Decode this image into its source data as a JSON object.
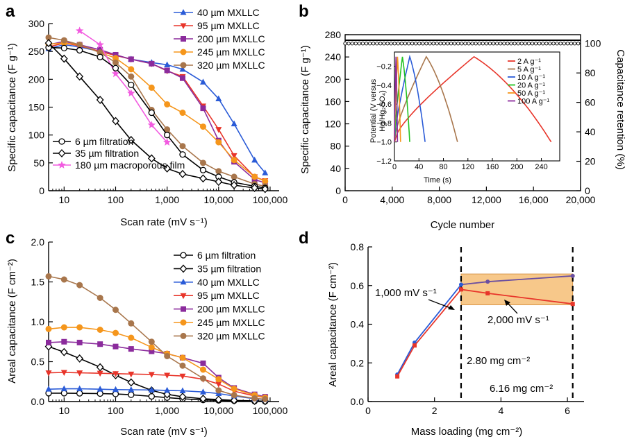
{
  "chart_data": [
    {
      "panel": "a",
      "type": "line",
      "xscale": "log",
      "xlim": [
        5,
        150000
      ],
      "ylim": [
        0,
        300
      ],
      "xlabel": "Scan rate (mV s⁻¹)",
      "ylabel": "Specific capacitance (F g⁻¹)",
      "xticks": [
        {
          "v": 10,
          "t": "10"
        },
        {
          "v": 100,
          "t": "100"
        },
        {
          "v": 1000,
          "t": "1,000"
        },
        {
          "v": 10000,
          "t": "10,000"
        },
        {
          "v": 100000,
          "t": "100,000"
        }
      ],
      "yticks": [
        {
          "v": 0,
          "t": "0"
        },
        {
          "v": 50,
          "t": "50"
        },
        {
          "v": 100,
          "t": "100"
        },
        {
          "v": 150,
          "t": "150"
        },
        {
          "v": 200,
          "t": "200"
        },
        {
          "v": 250,
          "t": "250"
        },
        {
          "v": 300,
          "t": "300"
        }
      ],
      "legend_top": [
        "40 µm MXLLC",
        "95 µm MXLLC",
        "200 µm MXLLC",
        "245 µm MXLLC",
        "320 µm MXLLC"
      ],
      "legend_bottom": [
        "6 µm filtration",
        "35 µm filtration",
        "180 µm macroporous film"
      ],
      "series": [
        {
          "name": "40 µm MXLLC",
          "color": "#2a5bd7",
          "marker": "tri",
          "x": [
            5,
            10,
            20,
            50,
            100,
            200,
            500,
            1000,
            2000,
            5000,
            10000,
            20000,
            50000,
            80000
          ],
          "y": [
            255,
            262,
            258,
            250,
            243,
            236,
            230,
            226,
            218,
            195,
            165,
            120,
            55,
            32
          ]
        },
        {
          "name": "95 µm MXLLC",
          "color": "#e8352a",
          "marker": "tridown",
          "x": [
            5,
            10,
            20,
            50,
            100,
            200,
            500,
            1000,
            2000,
            5000,
            10000,
            20000,
            50000,
            80000
          ],
          "y": [
            258,
            265,
            260,
            250,
            243,
            236,
            228,
            215,
            205,
            152,
            110,
            63,
            25,
            18
          ]
        },
        {
          "name": "200 µm MXLLC",
          "color": "#8b2b9c",
          "marker": "square",
          "x": [
            5,
            10,
            20,
            50,
            100,
            200,
            500,
            1000,
            2000,
            5000,
            10000,
            20000,
            50000,
            80000
          ],
          "y": [
            262,
            268,
            262,
            253,
            244,
            236,
            228,
            216,
            202,
            148,
            90,
            52,
            20,
            14
          ]
        },
        {
          "name": "245 µm MXLLC",
          "color": "#f5961c",
          "marker": "circle",
          "x": [
            5,
            10,
            20,
            50,
            100,
            200,
            500,
            1000,
            2000,
            5000,
            10000,
            20000,
            50000,
            80000
          ],
          "y": [
            263,
            265,
            262,
            248,
            238,
            218,
            185,
            155,
            140,
            115,
            87,
            55,
            25,
            17
          ]
        },
        {
          "name": "320 µm MXLLC",
          "color": "#a8764c",
          "marker": "circle",
          "x": [
            5,
            10,
            20,
            50,
            100,
            200,
            500,
            1000,
            2000,
            5000,
            10000,
            20000,
            50000,
            80000
          ],
          "y": [
            275,
            270,
            262,
            248,
            230,
            205,
            145,
            110,
            80,
            50,
            35,
            25,
            12,
            8
          ]
        },
        {
          "name": "180 µm macroporous film",
          "color": "#f25be0",
          "marker": "star",
          "x": [
            20,
            50,
            100,
            200,
            500,
            1000
          ],
          "y": [
            287,
            262,
            210,
            175,
            118,
            87
          ]
        },
        {
          "name": "6 µm filtration",
          "color": "#000000",
          "marker": "opencircle",
          "x": [
            5,
            10,
            20,
            50,
            100,
            200,
            500,
            1000,
            2000,
            5000,
            10000,
            20000,
            50000,
            80000
          ],
          "y": [
            257,
            256,
            252,
            240,
            220,
            190,
            140,
            100,
            65,
            37,
            25,
            15,
            8,
            5
          ]
        },
        {
          "name": "35 µm filtration",
          "color": "#000000",
          "marker": "opendiamond",
          "x": [
            5,
            10,
            20,
            50,
            100,
            200,
            500,
            1000,
            2000,
            5000,
            10000,
            20000,
            50000,
            80000
          ],
          "y": [
            265,
            237,
            205,
            163,
            125,
            91,
            58,
            40,
            30,
            22,
            16,
            10,
            5,
            3
          ]
        }
      ]
    },
    {
      "panel": "b",
      "type": "scatter",
      "xlim": [
        0,
        20000
      ],
      "ylim": [
        0,
        280
      ],
      "y2lim": [
        0,
        110
      ],
      "xlabel": "Cycle number",
      "ylabel": "Specific capacitance (F g⁻¹)",
      "y2label": "Capacitance retention (%)",
      "xticks": [
        {
          "v": 0,
          "t": "0"
        },
        {
          "v": 4000,
          "t": "4,000"
        },
        {
          "v": 8000,
          "t": "8,000"
        },
        {
          "v": 12000,
          "t": "12,000"
        },
        {
          "v": 16000,
          "t": "16,000"
        },
        {
          "v": 20000,
          "t": "20,000"
        }
      ],
      "yticks": [
        {
          "v": 0,
          "t": "0"
        },
        {
          "v": 40,
          "t": "40"
        },
        {
          "v": 80,
          "t": "80"
        },
        {
          "v": 120,
          "t": "120"
        },
        {
          "v": 160,
          "t": "160"
        },
        {
          "v": 200,
          "t": "200"
        },
        {
          "v": 240,
          "t": "240"
        },
        {
          "v": 280,
          "t": "280"
        }
      ],
      "y2ticks": [
        {
          "v": 0,
          "t": "0"
        },
        {
          "v": 20,
          "t": "20"
        },
        {
          "v": 40,
          "t": "40"
        },
        {
          "v": 60,
          "t": "60"
        },
        {
          "v": 80,
          "t": "80"
        },
        {
          "v": 100,
          "t": "100"
        }
      ],
      "capacitance_level": 270,
      "retention_level": 100,
      "inset": {
        "xlabel": "Time (s)",
        "ylabel_1": "Potential (V versus",
        "ylabel_2": "Hg/Hg₂SO₄)",
        "xlim": [
          0,
          270
        ],
        "ylim": [
          -1.2,
          0
        ],
        "xticks": [
          {
            "v": 0,
            "t": "0"
          },
          {
            "v": 40,
            "t": "40"
          },
          {
            "v": 80,
            "t": "80"
          },
          {
            "v": 120,
            "t": "120"
          },
          {
            "v": 160,
            "t": "160"
          },
          {
            "v": 200,
            "t": "200"
          },
          {
            "v": 240,
            "t": "240"
          }
        ],
        "yticks": [
          {
            "v": -1.2,
            "t": "−1.2"
          },
          {
            "v": -1.0,
            "t": "−1.0"
          },
          {
            "v": -0.8,
            "t": "−0.8"
          },
          {
            "v": -0.6,
            "t": "−0.6"
          },
          {
            "v": -0.4,
            "t": "−0.4"
          },
          {
            "v": -0.2,
            "t": "−0.2"
          }
        ],
        "series": [
          {
            "name": "2 A g⁻¹",
            "color": "#e8352a",
            "charge_end": 130,
            "discharge_end": 256
          },
          {
            "name": "5 A g⁻¹",
            "color": "#a8764c",
            "charge_end": 52,
            "discharge_end": 103
          },
          {
            "name": "10 A g⁻¹",
            "color": "#2a5bd7",
            "charge_end": 25,
            "discharge_end": 50
          },
          {
            "name": "20 A g⁻¹",
            "color": "#22c322",
            "charge_end": 13,
            "discharge_end": 25
          },
          {
            "name": "50 A g⁻¹",
            "color": "#f5961c",
            "charge_end": 5,
            "discharge_end": 10
          },
          {
            "name": "100 A g⁻¹",
            "color": "#8b2b9c",
            "charge_end": 2.5,
            "discharge_end": 5
          }
        ]
      }
    },
    {
      "panel": "c",
      "type": "line",
      "xscale": "log",
      "xlim": [
        5,
        150000
      ],
      "ylim": [
        0,
        2.0
      ],
      "xlabel": "Scan rate (mV s⁻¹)",
      "ylabel": "Areal capacitance (F cm⁻²)",
      "xticks": [
        {
          "v": 10,
          "t": "10"
        },
        {
          "v": 100,
          "t": "100"
        },
        {
          "v": 1000,
          "t": "1,000"
        },
        {
          "v": 10000,
          "t": "10,000"
        },
        {
          "v": 100000,
          "t": "100,000"
        }
      ],
      "yticks": [
        {
          "v": 0,
          "t": "0.0"
        },
        {
          "v": 0.5,
          "t": "0.5"
        },
        {
          "v": 1.0,
          "t": "1.0"
        },
        {
          "v": 1.5,
          "t": "1.5"
        },
        {
          "v": 2.0,
          "t": "2.0"
        }
      ],
      "series": [
        {
          "name": "6 µm filtration",
          "color": "#000000",
          "marker": "opencircle",
          "x": [
            5,
            10,
            20,
            50,
            100,
            200,
            500,
            1000,
            2000,
            5000,
            10000,
            20000,
            50000,
            80000
          ],
          "y": [
            0.105,
            0.105,
            0.103,
            0.1,
            0.095,
            0.085,
            0.065,
            0.05,
            0.035,
            0.02,
            0.015,
            0.01,
            0.005,
            0.003
          ]
        },
        {
          "name": "35 µm filtration",
          "color": "#000000",
          "marker": "opendiamond",
          "x": [
            5,
            10,
            20,
            50,
            100,
            200,
            500,
            1000,
            2000,
            5000,
            10000,
            20000,
            50000,
            80000
          ],
          "y": [
            0.69,
            0.62,
            0.54,
            0.43,
            0.33,
            0.24,
            0.14,
            0.09,
            0.06,
            0.035,
            0.025,
            0.015,
            0.008,
            0.005
          ]
        },
        {
          "name": "40 µm MXLLC",
          "color": "#2a5bd7",
          "marker": "tri",
          "x": [
            5,
            10,
            20,
            50,
            100,
            200,
            500,
            1000,
            2000,
            5000,
            10000,
            20000,
            50000,
            80000
          ],
          "y": [
            0.155,
            0.16,
            0.16,
            0.155,
            0.15,
            0.148,
            0.145,
            0.14,
            0.135,
            0.12,
            0.1,
            0.07,
            0.035,
            0.025
          ]
        },
        {
          "name": "95 µm MXLLC",
          "color": "#e8352a",
          "marker": "tridown",
          "x": [
            5,
            10,
            20,
            50,
            100,
            200,
            500,
            1000,
            2000,
            5000,
            10000,
            20000,
            50000,
            80000
          ],
          "y": [
            0.36,
            0.365,
            0.36,
            0.355,
            0.35,
            0.345,
            0.34,
            0.33,
            0.32,
            0.28,
            0.22,
            0.13,
            0.07,
            0.05
          ]
        },
        {
          "name": "200 µm MXLLC",
          "color": "#8b2b9c",
          "marker": "square",
          "x": [
            5,
            10,
            20,
            50,
            100,
            200,
            500,
            1000,
            2000,
            5000,
            10000,
            20000,
            50000,
            80000
          ],
          "y": [
            0.74,
            0.75,
            0.74,
            0.72,
            0.69,
            0.66,
            0.63,
            0.6,
            0.55,
            0.48,
            0.3,
            0.17,
            0.09,
            0.06
          ]
        },
        {
          "name": "245 µm MXLLC",
          "color": "#f5961c",
          "marker": "circle",
          "x": [
            5,
            10,
            20,
            50,
            100,
            200,
            500,
            1000,
            2000,
            5000,
            10000,
            20000,
            50000,
            80000
          ],
          "y": [
            0.91,
            0.93,
            0.93,
            0.9,
            0.86,
            0.8,
            0.68,
            0.6,
            0.55,
            0.4,
            0.28,
            0.16,
            0.08,
            0.05
          ]
        },
        {
          "name": "320 µm MXLLC",
          "color": "#a8764c",
          "marker": "circle",
          "x": [
            5,
            10,
            20,
            50,
            100,
            200,
            500,
            1000,
            2000,
            5000,
            10000,
            20000,
            50000,
            80000
          ],
          "y": [
            1.57,
            1.53,
            1.46,
            1.3,
            1.15,
            0.98,
            0.75,
            0.57,
            0.45,
            0.29,
            0.14,
            0.08,
            0.04,
            0.03
          ]
        }
      ]
    },
    {
      "panel": "d",
      "type": "line",
      "xlim": [
        0,
        6.5
      ],
      "ylim": [
        0,
        0.8
      ],
      "xlabel": "Mass loading (mg cm⁻²)",
      "ylabel": "Areal capacitance (F cm⁻²)",
      "xticks": [
        {
          "v": 0,
          "t": "0"
        },
        {
          "v": 2,
          "t": "2"
        },
        {
          "v": 4,
          "t": "4"
        },
        {
          "v": 6,
          "t": "6"
        }
      ],
      "yticks": [
        {
          "v": 0,
          "t": "0.0"
        },
        {
          "v": 0.2,
          "t": "0.2"
        },
        {
          "v": 0.4,
          "t": "0.4"
        },
        {
          "v": 0.6,
          "t": "0.6"
        },
        {
          "v": 0.8,
          "t": "0.8"
        }
      ],
      "vlines": [
        2.8,
        6.16
      ],
      "shaded_band": {
        "x": [
          2.8,
          6.16
        ],
        "y": [
          0.5,
          0.66
        ],
        "color": "#f7c88a"
      },
      "series": [
        {
          "name": "1,000 mV s⁻¹",
          "color": "#2a5bd7",
          "line2_color": "#6a4ea0",
          "x": [
            0.88,
            1.4,
            2.8,
            3.6,
            6.16
          ],
          "y": [
            0.14,
            0.305,
            0.605,
            0.62,
            0.65
          ]
        },
        {
          "name": "2,000 mV s⁻¹",
          "color": "#e8352a",
          "x": [
            0.88,
            1.4,
            2.8,
            3.6,
            6.16
          ],
          "y": [
            0.13,
            0.29,
            0.58,
            0.56,
            0.505
          ]
        }
      ],
      "annotations": [
        "1,000 mV s⁻¹",
        "2,000 mV s⁻¹",
        "2.80 mg cm⁻²",
        "6.16 mg cm⁻²"
      ]
    }
  ],
  "panel_labels": [
    "a",
    "b",
    "c",
    "d"
  ]
}
